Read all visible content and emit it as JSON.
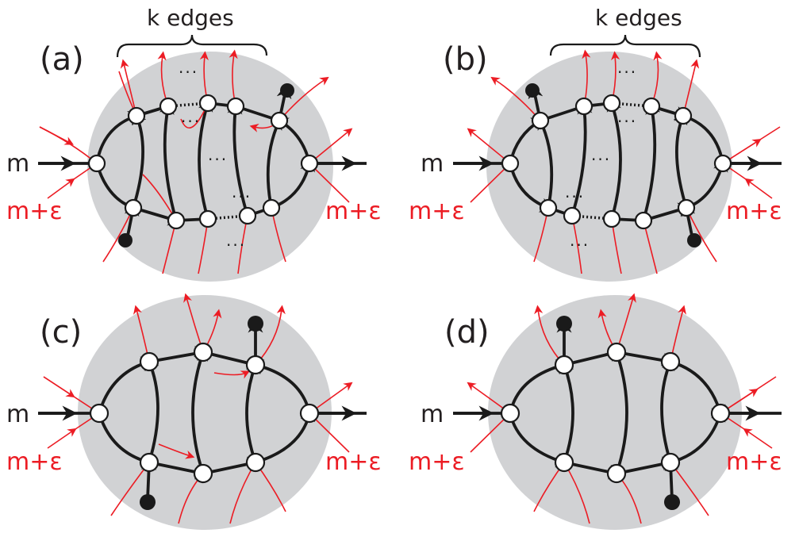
{
  "figure": {
    "panels": [
      {
        "label": "(a)",
        "in_label": "m",
        "perturb_label": "m+ε",
        "k_label": "k  edges"
      },
      {
        "label": "(b)",
        "in_label": "m",
        "perturb_label": "m+ε",
        "k_label": "k  edges"
      },
      {
        "label": "(c)",
        "in_label": "m",
        "perturb_label": "m+ε"
      },
      {
        "label": "(d)",
        "in_label": "m",
        "perturb_label": "m+ε"
      }
    ],
    "ellipsis": "···",
    "colors": {
      "blob": "#d1d2d4",
      "black_edge": "#1a1a1a",
      "red_edge": "#ec1c24",
      "label_red": "#ec1c24",
      "label_black": "#231f20"
    }
  }
}
